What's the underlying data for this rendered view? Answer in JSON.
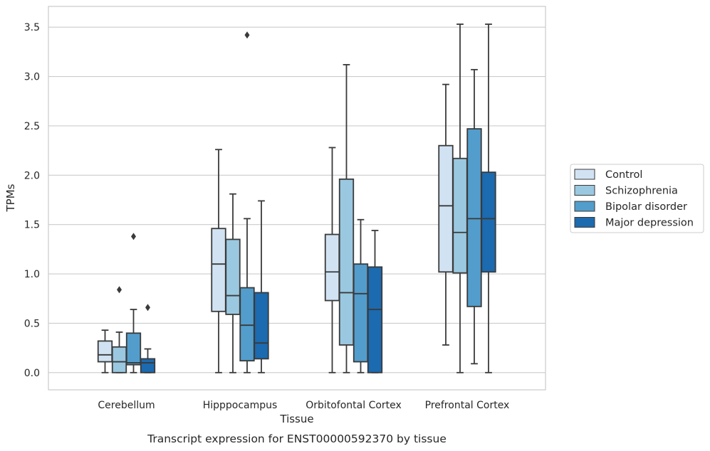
{
  "chart_data": {
    "type": "box",
    "title": "",
    "caption": "Transcript expression for ENST00000592370 by tissue",
    "xlabel": "Tissue",
    "ylabel": "TPMs",
    "ylim": [
      -0.17,
      3.72
    ],
    "yticks": [
      0.0,
      0.5,
      1.0,
      1.5,
      2.0,
      2.5,
      3.0,
      3.5
    ],
    "ytick_labels": [
      "0.0",
      "0.5",
      "1.0",
      "1.5",
      "2.0",
      "2.5",
      "3.0",
      "3.5"
    ],
    "grid": "horizontal",
    "legend_position": "right",
    "categories": [
      "Cerebellum",
      "Hipppocampus",
      "Orbitofontal Cortex",
      "Prefrontal Cortex"
    ],
    "series": [
      {
        "name": "Control",
        "color": "#d1e3f3",
        "boxes": [
          {
            "whisker_low": 0.0,
            "q1": 0.11,
            "median": 0.18,
            "q3": 0.32,
            "whisker_high": 0.43,
            "outliers": []
          },
          {
            "whisker_low": 0.0,
            "q1": 0.62,
            "median": 1.1,
            "q3": 1.46,
            "whisker_high": 2.26,
            "outliers": []
          },
          {
            "whisker_low": 0.0,
            "q1": 0.73,
            "median": 1.02,
            "q3": 1.4,
            "whisker_high": 2.28,
            "outliers": []
          },
          {
            "whisker_low": 0.28,
            "q1": 1.02,
            "median": 1.69,
            "q3": 2.3,
            "whisker_high": 2.92,
            "outliers": []
          }
        ]
      },
      {
        "name": "Schizophrenia",
        "color": "#9ac8e0",
        "boxes": [
          {
            "whisker_low": 0.0,
            "q1": 0.0,
            "median": 0.11,
            "q3": 0.26,
            "whisker_high": 0.41,
            "outliers": [
              0.84
            ]
          },
          {
            "whisker_low": 0.0,
            "q1": 0.59,
            "median": 0.78,
            "q3": 1.35,
            "whisker_high": 1.81,
            "outliers": []
          },
          {
            "whisker_low": 0.0,
            "q1": 0.28,
            "median": 0.81,
            "q3": 1.96,
            "whisker_high": 3.12,
            "outliers": []
          },
          {
            "whisker_low": 0.0,
            "q1": 1.01,
            "median": 1.42,
            "q3": 2.17,
            "whisker_high": 3.53,
            "outliers": []
          }
        ]
      },
      {
        "name": "Bipolar disorder",
        "color": "#529dcc",
        "boxes": [
          {
            "whisker_low": 0.0,
            "q1": 0.08,
            "median": 0.1,
            "q3": 0.4,
            "whisker_high": 0.64,
            "outliers": [
              1.38
            ]
          },
          {
            "whisker_low": 0.0,
            "q1": 0.12,
            "median": 0.48,
            "q3": 0.86,
            "whisker_high": 1.56,
            "outliers": [
              3.42
            ]
          },
          {
            "whisker_low": 0.0,
            "q1": 0.11,
            "median": 0.8,
            "q3": 1.1,
            "whisker_high": 1.55,
            "outliers": []
          },
          {
            "whisker_low": 0.09,
            "q1": 0.67,
            "median": 1.56,
            "q3": 2.47,
            "whisker_high": 3.07,
            "outliers": []
          }
        ]
      },
      {
        "name": "Major depression",
        "color": "#1c6aaf",
        "boxes": [
          {
            "whisker_low": 0.0,
            "q1": 0.0,
            "median": 0.1,
            "q3": 0.14,
            "whisker_high": 0.24,
            "outliers": [
              0.66
            ]
          },
          {
            "whisker_low": 0.0,
            "q1": 0.14,
            "median": 0.3,
            "q3": 0.81,
            "whisker_high": 1.74,
            "outliers": []
          },
          {
            "whisker_low": 0.0,
            "q1": 0.0,
            "median": 0.64,
            "q3": 1.07,
            "whisker_high": 1.44,
            "outliers": []
          },
          {
            "whisker_low": 0.0,
            "q1": 1.02,
            "median": 1.56,
            "q3": 2.03,
            "whisker_high": 3.53,
            "outliers": []
          }
        ]
      }
    ]
  }
}
